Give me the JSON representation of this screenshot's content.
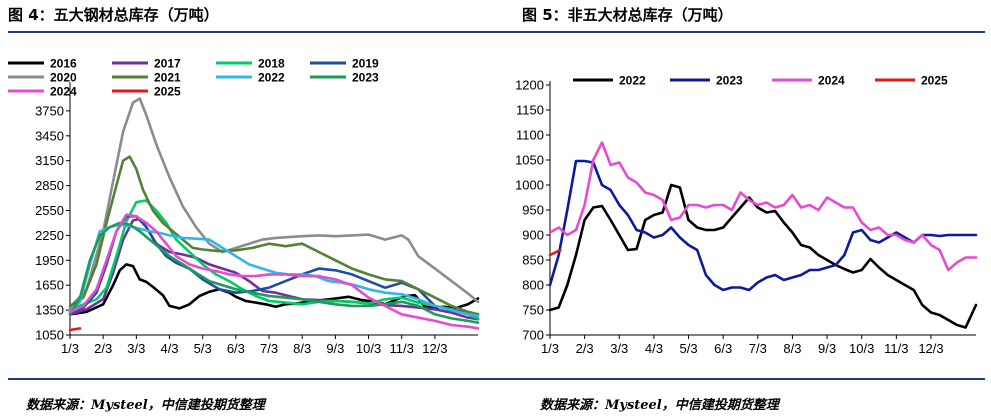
{
  "panels": {
    "left": {
      "title": "图 4：五大钢材总库存（万吨）"
    },
    "right": {
      "title": "图 5：非五大材总库存（万吨）"
    }
  },
  "sources": {
    "left": "数据来源：Mysteel，中信建投期货整理",
    "right": "数据来源：Mysteel，中信建投期货整理"
  },
  "colors": {
    "rule": "#1f3d79"
  },
  "chart_data": [
    {
      "type": "line",
      "title": "图 4：五大钢材总库存（万吨）",
      "xlabel": "",
      "ylabel": "",
      "ylim": [
        1050,
        4050
      ],
      "yticks": [
        1050,
        1350,
        1650,
        1950,
        2250,
        2550,
        2850,
        3150,
        3450,
        3750
      ],
      "xticks": [
        "1/3",
        "2/3",
        "3/3",
        "4/3",
        "5/3",
        "6/3",
        "7/3",
        "8/3",
        "9/3",
        "10/3",
        "11/3",
        "12/3"
      ],
      "xmax": 12.3,
      "grid": false,
      "legend": "top",
      "series": [
        {
          "name": "2016",
          "color": "#000000",
          "x": [
            0,
            0.5,
            1,
            1.3,
            1.5,
            1.7,
            1.9,
            2.1,
            2.3,
            2.5,
            2.8,
            3.0,
            3.3,
            3.6,
            3.9,
            4.2,
            4.5,
            4.8,
            5.0,
            5.3,
            5.6,
            5.9,
            6.2,
            6.5,
            6.8,
            7.2,
            7.6,
            8.0,
            8.4,
            8.8,
            9.2,
            9.5,
            9.8,
            10.1,
            10.4,
            10.7,
            11.0,
            11.3,
            11.6,
            12.0,
            12.3
          ],
          "y": [
            1300,
            1330,
            1420,
            1650,
            1830,
            1900,
            1880,
            1720,
            1690,
            1630,
            1530,
            1400,
            1370,
            1420,
            1520,
            1570,
            1600,
            1560,
            1510,
            1460,
            1440,
            1420,
            1390,
            1420,
            1430,
            1450,
            1470,
            1490,
            1510,
            1470,
            1450,
            1420,
            1470,
            1520,
            1530,
            1390,
            1380,
            1390,
            1370,
            1420,
            1490
          ]
        },
        {
          "name": "2017",
          "color": "#7030a0",
          "x": [
            0,
            0.5,
            1,
            1.3,
            1.6,
            1.9,
            2.1,
            2.3,
            2.6,
            3.0,
            3.4,
            3.8,
            4.2,
            4.6,
            5.0,
            5.4,
            5.8,
            6.2,
            6.6,
            7.0,
            7.5,
            8.0,
            8.5,
            9.0,
            9.5,
            10.0,
            10.5,
            11.0,
            11.5,
            12.0,
            12.3
          ],
          "y": [
            1300,
            1360,
            1480,
            1800,
            2200,
            2430,
            2450,
            2350,
            2150,
            2050,
            2020,
            1980,
            1900,
            1850,
            1800,
            1700,
            1580,
            1560,
            1520,
            1480,
            1470,
            1460,
            1450,
            1430,
            1410,
            1400,
            1380,
            1360,
            1320,
            1260,
            1240
          ]
        },
        {
          "name": "2018",
          "color": "#00cc66",
          "x": [
            0,
            0.4,
            0.8,
            1.1,
            1.4,
            1.7,
            2.0,
            2.3,
            2.6,
            2.9,
            3.2,
            3.6,
            4.0,
            4.4,
            4.8,
            5.2,
            5.6,
            6.0,
            6.5,
            7.0,
            7.5,
            8.0,
            8.5,
            9.0,
            9.5,
            10.0,
            10.5,
            11.0,
            11.5,
            12.0,
            12.3
          ],
          "y": [
            1360,
            1420,
            1480,
            1620,
            2000,
            2420,
            2650,
            2670,
            2550,
            2400,
            2200,
            2050,
            1900,
            1780,
            1700,
            1600,
            1520,
            1460,
            1440,
            1420,
            1450,
            1460,
            1450,
            1430,
            1480,
            1500,
            1440,
            1400,
            1360,
            1300,
            1250
          ]
        },
        {
          "name": "2019",
          "color": "#1f4e9e",
          "x": [
            0,
            0.4,
            0.8,
            1.1,
            1.4,
            1.7,
            2.0,
            2.3,
            2.6,
            2.9,
            3.2,
            3.6,
            4.0,
            4.5,
            5.0,
            5.5,
            6.0,
            6.5,
            7.0,
            7.5,
            8.0,
            8.5,
            9.0,
            9.5,
            10.0,
            10.5,
            11.0,
            11.5,
            12.0,
            12.3
          ],
          "y": [
            1330,
            1380,
            1560,
            1900,
            2300,
            2480,
            2480,
            2350,
            2150,
            2000,
            1920,
            1850,
            1720,
            1600,
            1560,
            1580,
            1620,
            1700,
            1780,
            1850,
            1830,
            1780,
            1700,
            1620,
            1680,
            1600,
            1400,
            1350,
            1320,
            1300
          ]
        },
        {
          "name": "2020",
          "color": "#8c8c8c",
          "x": [
            0,
            0.5,
            1.0,
            1.3,
            1.6,
            1.9,
            2.1,
            2.3,
            2.6,
            3.0,
            3.4,
            3.8,
            4.2,
            4.6,
            5.0,
            5.4,
            5.8,
            6.2,
            6.6,
            7.0,
            7.5,
            8.0,
            8.5,
            9.0,
            9.5,
            10.0,
            10.2,
            10.5,
            11.0,
            11.5,
            12.0,
            12.3
          ],
          "y": [
            1380,
            1600,
            2300,
            2900,
            3500,
            3850,
            3900,
            3700,
            3350,
            2950,
            2600,
            2350,
            2150,
            2050,
            2100,
            2150,
            2200,
            2220,
            2230,
            2240,
            2250,
            2240,
            2250,
            2260,
            2200,
            2250,
            2200,
            2000,
            1850,
            1700,
            1550,
            1450
          ]
        },
        {
          "name": "2021",
          "color": "#548235",
          "x": [
            0,
            0.4,
            0.8,
            1.1,
            1.4,
            1.6,
            1.8,
            2.0,
            2.2,
            2.5,
            2.8,
            3.1,
            3.4,
            3.7,
            4.0,
            4.5,
            5.0,
            5.5,
            6.0,
            6.5,
            7.0,
            7.5,
            8.0,
            8.5,
            9.0,
            9.5,
            10.0,
            10.5,
            11.0,
            11.5,
            12.0,
            12.3
          ],
          "y": [
            1400,
            1500,
            1900,
            2400,
            2850,
            3150,
            3200,
            3050,
            2800,
            2550,
            2400,
            2300,
            2200,
            2100,
            2080,
            2060,
            2070,
            2100,
            2150,
            2120,
            2150,
            2050,
            1950,
            1850,
            1780,
            1720,
            1700,
            1600,
            1500,
            1400,
            1330,
            1300
          ]
        },
        {
          "name": "2022",
          "color": "#33b5e5",
          "x": [
            0,
            0.3,
            0.6,
            0.9,
            1.2,
            1.5,
            1.8,
            2.1,
            2.4,
            2.7,
            3.0,
            3.4,
            3.8,
            4.2,
            4.6,
            5.0,
            5.4,
            5.8,
            6.2,
            6.6,
            7.0,
            7.4,
            7.8,
            8.2,
            8.6,
            9.0,
            9.5,
            10.0,
            10.5,
            11.0,
            11.5,
            12.0,
            12.3
          ],
          "y": [
            1350,
            1450,
            1900,
            2300,
            2350,
            2380,
            2360,
            2330,
            2300,
            2280,
            2250,
            2220,
            2210,
            2200,
            2100,
            2000,
            1900,
            1850,
            1800,
            1780,
            1780,
            1760,
            1700,
            1680,
            1650,
            1600,
            1560,
            1540,
            1480,
            1400,
            1350,
            1300,
            1280
          ]
        },
        {
          "name": "2023",
          "color": "#1a9c5a",
          "x": [
            0,
            0.3,
            0.6,
            0.9,
            1.2,
            1.5,
            1.8,
            2.1,
            2.4,
            2.7,
            3.0,
            3.4,
            3.8,
            4.2,
            4.6,
            5.0,
            5.5,
            6.0,
            6.5,
            7.0,
            7.5,
            8.0,
            8.5,
            9.0,
            9.5,
            10.0,
            10.5,
            11.0,
            11.5,
            12.0,
            12.3
          ],
          "y": [
            1300,
            1500,
            1950,
            2250,
            2350,
            2400,
            2380,
            2300,
            2200,
            2100,
            2000,
            1900,
            1800,
            1700,
            1650,
            1600,
            1560,
            1520,
            1500,
            1480,
            1450,
            1420,
            1400,
            1400,
            1420,
            1450,
            1400,
            1300,
            1250,
            1220,
            1200
          ]
        },
        {
          "name": "2024",
          "color": "#e64bd1",
          "x": [
            0,
            0.4,
            0.8,
            1.1,
            1.4,
            1.7,
            2.0,
            2.3,
            2.6,
            2.9,
            3.2,
            3.6,
            4.0,
            4.4,
            4.8,
            5.2,
            5.6,
            6.0,
            6.5,
            7.0,
            7.5,
            8.0,
            8.5,
            9.0,
            9.5,
            10.0,
            10.5,
            11.0,
            11.5,
            12.0,
            12.3
          ],
          "y": [
            1330,
            1400,
            1600,
            1950,
            2300,
            2500,
            2480,
            2400,
            2300,
            2150,
            2000,
            1900,
            1850,
            1820,
            1780,
            1760,
            1760,
            1780,
            1780,
            1760,
            1760,
            1720,
            1650,
            1500,
            1400,
            1300,
            1260,
            1220,
            1170,
            1150,
            1130
          ]
        },
        {
          "name": "2025",
          "color": "#e31a1c",
          "x": [
            0,
            0.3
          ],
          "y": [
            1110,
            1130
          ]
        }
      ]
    },
    {
      "type": "line",
      "title": "图 5：非五大材总库存（万吨）",
      "xlabel": "",
      "ylabel": "",
      "ylim": [
        700,
        1200
      ],
      "yticks": [
        700,
        750,
        800,
        850,
        900,
        950,
        1000,
        1050,
        1100,
        1150,
        1200
      ],
      "xticks": [
        "1/3",
        "2/3",
        "3/3",
        "4/3",
        "5/3",
        "6/3",
        "7/3",
        "8/3",
        "9/3",
        "10/3",
        "11/3",
        "12/3"
      ],
      "xmax": 12.3,
      "grid": false,
      "legend": "top",
      "series": [
        {
          "name": "2022",
          "color": "#000000",
          "x": [
            0,
            0.25,
            0.5,
            0.75,
            1.0,
            1.25,
            1.5,
            1.75,
            2.0,
            2.25,
            2.5,
            2.75,
            3.0,
            3.25,
            3.5,
            3.75,
            4.0,
            4.25,
            4.5,
            4.75,
            5.0,
            5.25,
            5.5,
            5.75,
            6.0,
            6.25,
            6.5,
            6.75,
            7.0,
            7.25,
            7.5,
            7.75,
            8.0,
            8.25,
            8.5,
            8.75,
            9.0,
            9.25,
            9.5,
            9.75,
            10.0,
            10.25,
            10.5,
            10.75,
            11.0,
            11.25,
            11.5,
            11.75,
            12.0,
            12.3
          ],
          "y": [
            750,
            755,
            800,
            860,
            930,
            955,
            958,
            930,
            900,
            870,
            872,
            930,
            940,
            945,
            1000,
            995,
            930,
            915,
            910,
            910,
            915,
            935,
            955,
            975,
            955,
            945,
            948,
            925,
            905,
            880,
            875,
            860,
            850,
            840,
            832,
            825,
            830,
            852,
            835,
            820,
            810,
            800,
            790,
            760,
            745,
            740,
            730,
            720,
            715,
            760
          ]
        },
        {
          "name": "2023",
          "color": "#0d1a9e",
          "x": [
            0,
            0.25,
            0.5,
            0.75,
            1.0,
            1.25,
            1.5,
            1.75,
            2.0,
            2.25,
            2.5,
            2.75,
            3.0,
            3.25,
            3.5,
            3.75,
            4.0,
            4.25,
            4.5,
            4.75,
            5.0,
            5.25,
            5.5,
            5.75,
            6.0,
            6.25,
            6.5,
            6.75,
            7.0,
            7.25,
            7.5,
            7.75,
            8.0,
            8.25,
            8.5,
            8.75,
            9.0,
            9.25,
            9.5,
            9.75,
            10.0,
            10.25,
            10.5,
            10.75,
            11.0,
            11.25,
            11.5,
            11.75,
            12.0,
            12.3
          ],
          "y": [
            800,
            860,
            950,
            1048,
            1048,
            1045,
            1000,
            990,
            960,
            940,
            910,
            905,
            895,
            900,
            915,
            895,
            880,
            870,
            820,
            800,
            790,
            795,
            795,
            790,
            805,
            815,
            820,
            810,
            815,
            820,
            830,
            830,
            835,
            840,
            860,
            905,
            910,
            890,
            885,
            895,
            905,
            895,
            885,
            900,
            900,
            898,
            900,
            900,
            900,
            900
          ]
        },
        {
          "name": "2024",
          "color": "#e64bd1",
          "x": [
            0,
            0.25,
            0.5,
            0.75,
            1.0,
            1.25,
            1.5,
            1.75,
            2.0,
            2.25,
            2.5,
            2.75,
            3.0,
            3.25,
            3.5,
            3.75,
            4.0,
            4.25,
            4.5,
            4.75,
            5.0,
            5.25,
            5.5,
            5.75,
            6.0,
            6.25,
            6.5,
            6.75,
            7.0,
            7.25,
            7.5,
            7.75,
            8.0,
            8.25,
            8.5,
            8.75,
            9.0,
            9.25,
            9.5,
            9.75,
            10.0,
            10.25,
            10.5,
            10.75,
            11.0,
            11.25,
            11.5,
            11.75,
            12.0,
            12.3
          ],
          "y": [
            905,
            915,
            900,
            910,
            960,
            1050,
            1085,
            1040,
            1045,
            1015,
            1005,
            985,
            980,
            970,
            930,
            935,
            960,
            960,
            955,
            960,
            960,
            950,
            985,
            970,
            960,
            965,
            955,
            960,
            980,
            955,
            960,
            950,
            975,
            965,
            955,
            955,
            925,
            910,
            915,
            900,
            900,
            890,
            885,
            900,
            880,
            870,
            830,
            845,
            855,
            855
          ]
        },
        {
          "name": "2025",
          "color": "#e31a1c",
          "x": [
            0,
            0.3
          ],
          "y": [
            860,
            870
          ]
        }
      ]
    }
  ]
}
